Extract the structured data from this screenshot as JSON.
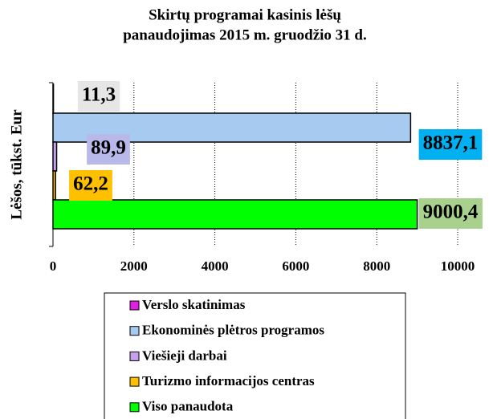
{
  "chart_data": {
    "type": "hbar",
    "title": "Skirtų programai kasinis lėšų",
    "subtitle": "panaudojimas 2015 m. gruodžio 31 d.",
    "y_label": "Lėšos, tūkst. Eur",
    "categories": [
      null
    ],
    "series": [
      {
        "name": "Verslo skatinimas",
        "color": "#e020e0",
        "label_color": "#e6e6e6",
        "values": [
          11.3
        ],
        "value_labels": [
          "11,3"
        ]
      },
      {
        "name": "Ekonominės plėtros programos",
        "color": "#a6caf0",
        "label_color": "#00b0f0",
        "values": [
          8837.1
        ],
        "value_labels": [
          "8837,1"
        ]
      },
      {
        "name": "Viešieji darbai",
        "color": "#c8a0f0",
        "label_color": "#b8b8ea",
        "values": [
          89.9
        ],
        "value_labels": [
          "89,9"
        ]
      },
      {
        "name": "Turizmo informacijos centras",
        "color": "#ffc000",
        "label_color": "#ffc000",
        "values": [
          62.2
        ],
        "value_labels": [
          "62,2"
        ]
      },
      {
        "name": "Viso panaudota",
        "color": "#00ff00",
        "label_color": "#a9d18e",
        "values": [
          9000.4
        ],
        "value_labels": [
          "9000,4"
        ]
      }
    ],
    "xlim": [
      0,
      10000
    ],
    "xticks": [
      0,
      2000,
      4000,
      6000,
      8000,
      10000
    ],
    "grid": true
  }
}
